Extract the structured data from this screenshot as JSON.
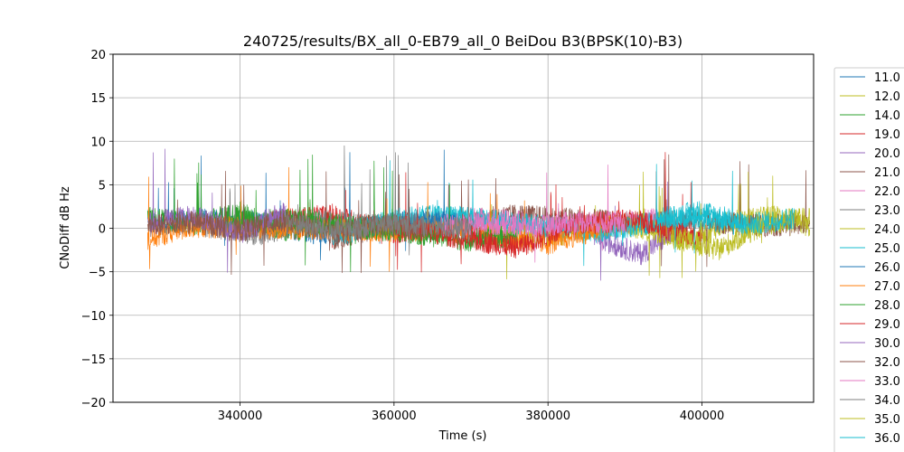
{
  "chart_data": {
    "type": "line",
    "title": "240725/results/BX_all_0-EB79_all_0 BeiDou B3(BPSK(10)-B3)",
    "xlabel": "Time (s)",
    "ylabel": "CNoDiff dB Hz",
    "xlim": [
      323500,
      414500
    ],
    "ylim": [
      -20,
      20
    ],
    "x_ticks": [
      340000,
      360000,
      380000,
      400000
    ],
    "x_tick_labels": [
      "340000",
      "360000",
      "380000",
      "400000"
    ],
    "y_ticks": [
      -20,
      -15,
      -10,
      -5,
      0,
      5,
      10,
      15,
      20
    ],
    "y_tick_labels": [
      "−20",
      "−15",
      "−10",
      "−5",
      "0",
      "5",
      "10",
      "15",
      "20"
    ],
    "grid": true,
    "legend_position": "outside-right",
    "series": [
      {
        "name": "11.0",
        "color": "#1f77b4",
        "x": [
          328000,
          339000,
          350000,
          362000
        ],
        "y": [
          0.4,
          1.2,
          -0.6,
          0.8
        ]
      },
      {
        "name": "12.0",
        "color": "#bcbd22",
        "x": [
          392000,
          398000,
          404000,
          410000,
          414000
        ],
        "y": [
          0.3,
          -1.5,
          0.9,
          1.4,
          0.2
        ]
      },
      {
        "name": "14.0",
        "color": "#2ca02c",
        "x": [
          328000,
          334000,
          340000,
          346000,
          352000,
          358000
        ],
        "y": [
          1.2,
          0.5,
          1.8,
          -0.4,
          0.7,
          0.2
        ]
      },
      {
        "name": "19.0",
        "color": "#d62728",
        "x": [
          344000,
          352000,
          360000,
          368000,
          376000
        ],
        "y": [
          0.8,
          1.5,
          -0.5,
          0.3,
          -2.0
        ]
      },
      {
        "name": "20.0",
        "color": "#9467bd",
        "x": [
          386000,
          392000,
          398000
        ],
        "y": [
          -1.0,
          -3.0,
          0.5
        ]
      },
      {
        "name": "21.0",
        "color": "#8c564b",
        "x": [
          352000,
          360000,
          368000,
          376000,
          384000,
          392000,
          400000,
          408000,
          414000
        ],
        "y": [
          -1.2,
          0.5,
          0.8,
          1.5,
          1.0,
          0.6,
          0.8,
          0.3,
          0.5
        ]
      },
      {
        "name": "22.0",
        "color": "#e377c2",
        "x": [
          370000,
          376000,
          382000,
          388000,
          394000
        ],
        "y": [
          1.2,
          0.8,
          -0.3,
          0.6,
          1.0
        ]
      },
      {
        "name": "23.0",
        "color": "#7f7f7f",
        "x": [
          334000,
          342000,
          350000,
          358000,
          366000
        ],
        "y": [
          0.5,
          -0.8,
          1.0,
          0.3,
          -0.2
        ]
      },
      {
        "name": "24.0",
        "color": "#bcbd22",
        "x": [
          372000,
          380000,
          390000,
          398000
        ],
        "y": [
          -0.6,
          -1.0,
          0.4,
          -1.2
        ]
      },
      {
        "name": "25.0",
        "color": "#17becf",
        "x": [
          352000,
          360000,
          366000,
          376000,
          386000,
          398000,
          406000
        ],
        "y": [
          -1.0,
          1.0,
          1.5,
          0.6,
          -0.4,
          1.2,
          0.3
        ]
      },
      {
        "name": "26.0",
        "color": "#1f77b4",
        "x": [
          362000,
          368000
        ],
        "y": [
          0.5,
          1.0
        ]
      },
      {
        "name": "27.0",
        "color": "#ff7f0e",
        "x": [
          328000,
          334000,
          372000,
          380000,
          388000
        ],
        "y": [
          -1.2,
          0.2,
          -0.5,
          -1.8,
          0.3
        ]
      },
      {
        "name": "28.0",
        "color": "#2ca02c",
        "x": [
          338000,
          346000,
          354000,
          362000,
          370000,
          376000
        ],
        "y": [
          0.6,
          1.0,
          0.2,
          -0.5,
          -1.4,
          -0.8
        ]
      },
      {
        "name": "29.0",
        "color": "#d62728",
        "x": [
          360000,
          368000,
          376000,
          384000,
          392000,
          400000
        ],
        "y": [
          0.4,
          -1.0,
          -2.2,
          0.6,
          0.9,
          -1.5
        ]
      },
      {
        "name": "30.0",
        "color": "#9467bd",
        "x": [
          328000,
          334000,
          340000,
          346000
        ],
        "y": [
          0.5,
          1.5,
          -0.5,
          2.0
        ]
      },
      {
        "name": "32.0",
        "color": "#8c564b",
        "x": [
          328000,
          334000,
          340000,
          346000,
          352000,
          358000,
          364000
        ],
        "y": [
          0.2,
          0.7,
          -0.3,
          0.9,
          -0.6,
          0.4,
          -0.1
        ]
      },
      {
        "name": "33.0",
        "color": "#e377c2",
        "x": [
          366000,
          372000,
          378000,
          384000,
          390000
        ],
        "y": [
          0.3,
          0.6,
          0.1,
          0.8,
          0.5
        ]
      },
      {
        "name": "34.0",
        "color": "#7f7f7f",
        "x": [
          346000,
          352000,
          360000,
          370000
        ],
        "y": [
          0.8,
          -0.4,
          0.6,
          -0.2
        ]
      },
      {
        "name": "35.0",
        "color": "#bcbd22",
        "x": [
          396000,
          402000,
          408000,
          414000
        ],
        "y": [
          -1.0,
          -2.5,
          0.4,
          1.2
        ]
      },
      {
        "name": "36.0",
        "color": "#17becf",
        "x": [
          394000,
          400000,
          406000,
          412000
        ],
        "y": [
          1.0,
          2.0,
          0.4,
          1.2
        ]
      }
    ]
  }
}
